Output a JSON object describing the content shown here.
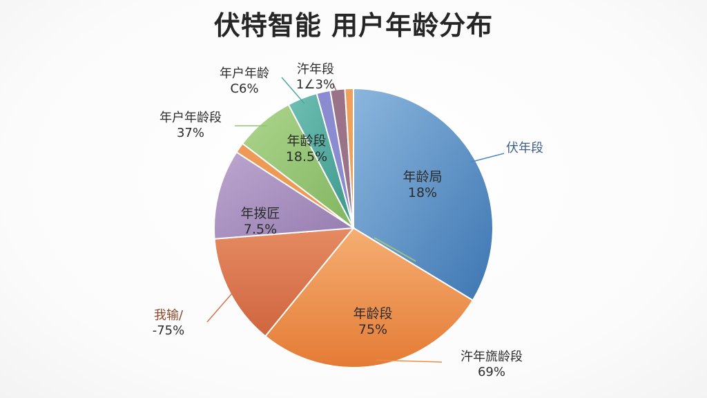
{
  "chart_data": {
    "type": "pie",
    "title": "伏特智能 用户年龄分布",
    "colors": {
      "blue": "#4f86c0",
      "orange": "#ec8c45",
      "rust": "#d9714c",
      "purple": "#a48cbc",
      "orange_thin": "#ec9a55",
      "green": "#93c471",
      "teal": "#4aa79c",
      "lavender": "#8b8bd1",
      "mauve": "#9a7389",
      "orange_edge": "#efa05a"
    },
    "slices": [
      {
        "name": "blue",
        "value": 34.0,
        "inside": [
          "年龄局",
          "18%"
        ],
        "outside": [
          "伏年段"
        ]
      },
      {
        "name": "orange",
        "value": 27.5,
        "inside": [
          "年龄段",
          "75%"
        ],
        "outside": [
          "汻年旒龄段",
          "69%"
        ]
      },
      {
        "name": "rust",
        "value": 13.0,
        "inside": [],
        "outside": [
          "我输/",
          "-75%"
        ]
      },
      {
        "name": "purple",
        "value": 10.5,
        "inside": [
          "年拨匠",
          "7.5%"
        ],
        "outside": []
      },
      {
        "name": "orange_thin",
        "value": 1.2,
        "inside": [],
        "outside": []
      },
      {
        "name": "green",
        "value": 7.0,
        "inside": [],
        "outside": [
          "年户年龄段",
          "37%"
        ]
      },
      {
        "name": "teal",
        "value": 3.5,
        "inside": [
          "年龄段",
          "18.5%"
        ],
        "outside": [
          "年户年龄",
          "C6%"
        ]
      },
      {
        "name": "lavender",
        "value": 1.6,
        "inside": [],
        "outside": []
      },
      {
        "name": "mauve",
        "value": 1.7,
        "inside": [],
        "outside": [
          "汻年段",
          "1∠3%"
        ]
      },
      {
        "name": "orange_edge",
        "value": 1.0,
        "inside": [],
        "outside": []
      }
    ]
  }
}
